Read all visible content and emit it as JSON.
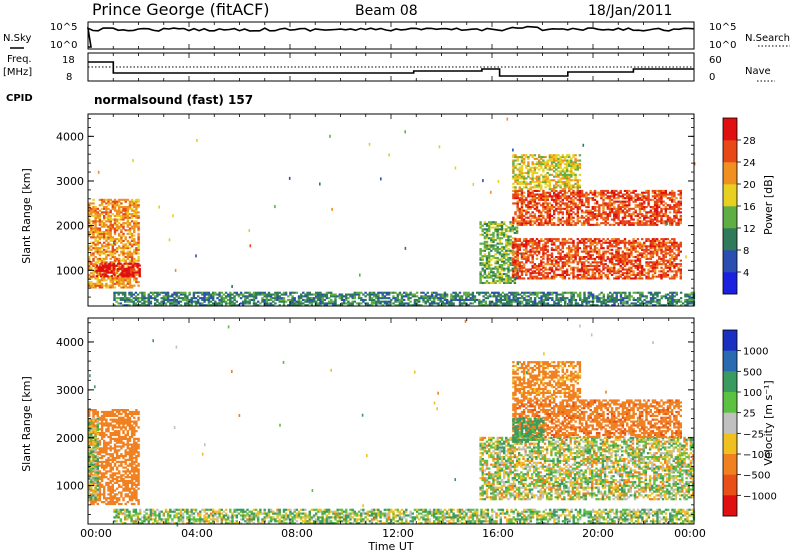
{
  "header": {
    "station": "Prince George (fitACF)",
    "beam": "Beam 08",
    "date": "18/Jan/2011"
  },
  "noise_panel": {
    "left_label": "N.Sky",
    "right_label": "N.Search",
    "left_ticks": [
      "10^5",
      "10^0"
    ],
    "right_ticks": [
      "10^5",
      "10^0"
    ]
  },
  "freq_panel": {
    "left_label_1": "Freq.",
    "left_label_2": "[MHz]",
    "left_ticks": [
      "18",
      "8"
    ],
    "right_label": "Nave",
    "right_ticks": [
      "60",
      "0"
    ]
  },
  "cpid": {
    "label": "CPID",
    "program": "normalsound (fast) 157"
  },
  "axes": {
    "ylabel": "Slant Range [km]",
    "yticks": [
      "1000",
      "2000",
      "3000",
      "4000"
    ],
    "xticks": [
      "00:00",
      "04:00",
      "08:00",
      "12:00",
      "16:00",
      "20:00",
      "00:00"
    ],
    "xlabel": "Time UT"
  },
  "colorbars": {
    "power": {
      "label": "Power [dB]",
      "ticks": [
        "4",
        "8",
        "12",
        "16",
        "20",
        "24",
        "28"
      ],
      "colors": [
        "#1a22e0",
        "#2a4fb0",
        "#2f7a5a",
        "#5fae45",
        "#e8d020",
        "#f09020",
        "#e84818",
        "#e01010"
      ]
    },
    "velocity": {
      "label": "Velocity [m s⁻¹]",
      "ticks": [
        "1000",
        "500",
        "100",
        "25",
        "−25",
        "−100",
        "−500",
        "−1000"
      ],
      "colors": [
        "#1a30c0",
        "#2a6ab0",
        "#3a9a60",
        "#5cc040",
        "#c0c0c0",
        "#f0c020",
        "#f08020",
        "#e85018",
        "#e01010"
      ]
    }
  },
  "chart_data": [
    {
      "type": "heatmap",
      "title": "Power",
      "xlabel": "Time UT",
      "ylabel": "Slant Range [km]",
      "xlim": [
        0,
        24
      ],
      "ylim": [
        200,
        4500
      ],
      "colorbar": {
        "label": "Power [dB]",
        "range": [
          0,
          32
        ]
      },
      "regions": [
        {
          "t": [
            0.0,
            2.0
          ],
          "r": [
            600,
            2600
          ],
          "value": 22
        },
        {
          "t": [
            0.3,
            2.0
          ],
          "r": [
            850,
            1150
          ],
          "value": 30
        },
        {
          "t": [
            1.0,
            24.0
          ],
          "r": [
            200,
            500
          ],
          "value": 10
        },
        {
          "t": [
            15.5,
            17.0
          ],
          "r": [
            700,
            2100
          ],
          "value": 14
        },
        {
          "t": [
            16.8,
            23.5
          ],
          "r": [
            2000,
            2800
          ],
          "value": 26
        },
        {
          "t": [
            16.8,
            23.5
          ],
          "r": [
            800,
            1700
          ],
          "value": 26
        },
        {
          "t": [
            16.8,
            19.5
          ],
          "r": [
            2800,
            3600
          ],
          "value": 18
        }
      ]
    },
    {
      "type": "heatmap",
      "title": "Velocity",
      "xlabel": "Time UT",
      "ylabel": "Slant Range [km]",
      "xlim": [
        0,
        24
      ],
      "ylim": [
        200,
        4500
      ],
      "colorbar": {
        "label": "Velocity [m s⁻¹]",
        "range": [
          -1000,
          1000
        ]
      },
      "regions": [
        {
          "t": [
            0.0,
            2.0
          ],
          "r": [
            600,
            2600
          ],
          "value": -300
        },
        {
          "t": [
            0.0,
            0.4
          ],
          "r": [
            700,
            2400
          ],
          "value": 60
        },
        {
          "t": [
            1.0,
            24.0
          ],
          "r": [
            200,
            500
          ],
          "value": 40
        },
        {
          "t": [
            15.5,
            24.0
          ],
          "r": [
            700,
            2000
          ],
          "value": 0
        },
        {
          "t": [
            16.8,
            23.5
          ],
          "r": [
            2000,
            2800
          ],
          "value": -400
        },
        {
          "t": [
            16.8,
            18.0
          ],
          "r": [
            1900,
            2400
          ],
          "value": 200
        },
        {
          "t": [
            16.8,
            19.5
          ],
          "r": [
            2800,
            3600
          ],
          "value": -200
        }
      ]
    }
  ]
}
